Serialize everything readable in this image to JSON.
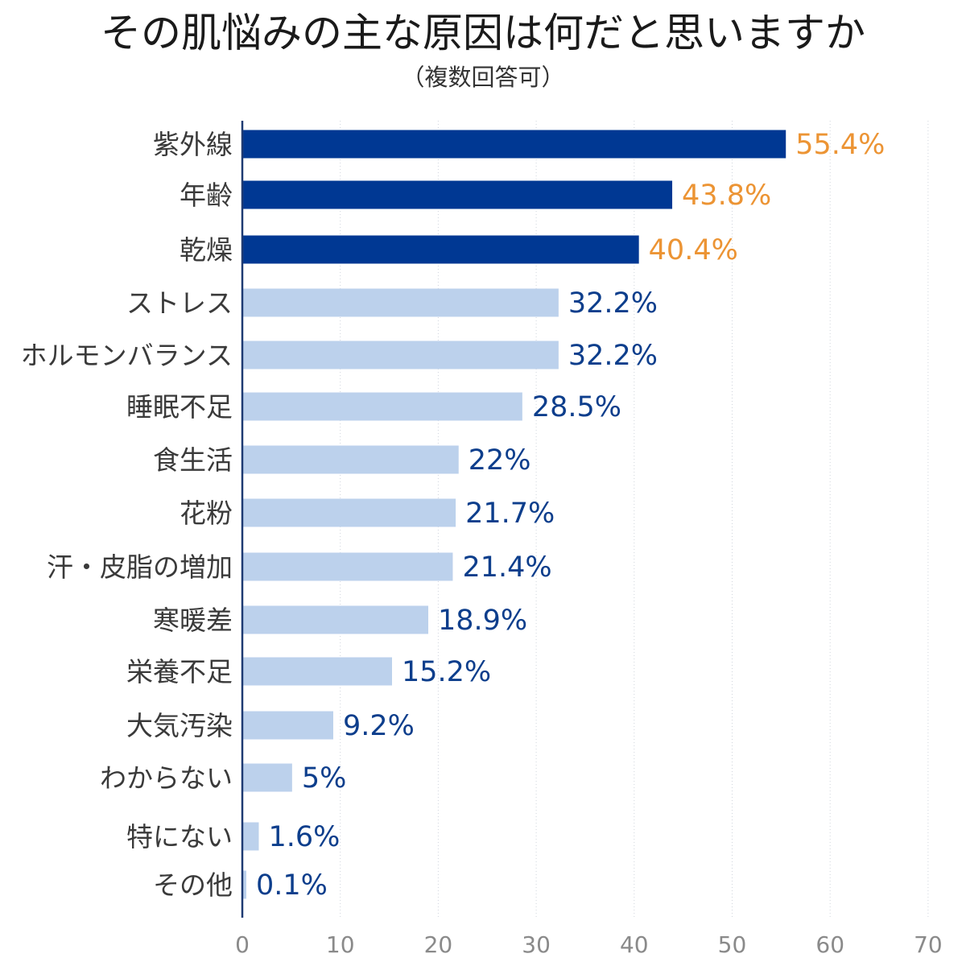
{
  "chart_data": {
    "type": "bar",
    "orientation": "horizontal",
    "title": "その肌悩みの主な原因は何だと思いますか",
    "subtitle": "（複数回答可）",
    "xlabel": "",
    "ylabel": "",
    "xlim": [
      0,
      70
    ],
    "xticks": [
      0,
      10,
      20,
      30,
      40,
      50,
      60,
      70
    ],
    "grid": true,
    "categories": [
      "紫外線",
      "年齢",
      "乾燥",
      "ストレス",
      "ホルモンバランス",
      "睡眠不足",
      "食生活",
      "花粉",
      "汗・皮脂の増加",
      "寒暖差",
      "栄養不足",
      "大気汚染",
      "わからない",
      "特にない",
      "その他"
    ],
    "values": [
      55.4,
      43.8,
      40.4,
      32.2,
      32.2,
      28.5,
      22,
      21.7,
      21.4,
      18.9,
      15.2,
      9.2,
      5,
      1.6,
      0.1
    ],
    "data_labels": [
      "55.4%",
      "43.8%",
      "40.4%",
      "32.2%",
      "32.2%",
      "28.5%",
      "22%",
      "21.7%",
      "21.4%",
      "18.9%",
      "15.2%",
      "9.2%",
      "5%",
      "1.6%",
      "0.1%"
    ],
    "highlight_count": 3,
    "colors": {
      "highlight_bar": "#003893",
      "normal_bar": "#bcd1ec",
      "highlight_label": "#ec9434",
      "normal_label": "#0d3e8c",
      "axis": "#1f3b73",
      "grid": "#cfd4dc"
    }
  }
}
